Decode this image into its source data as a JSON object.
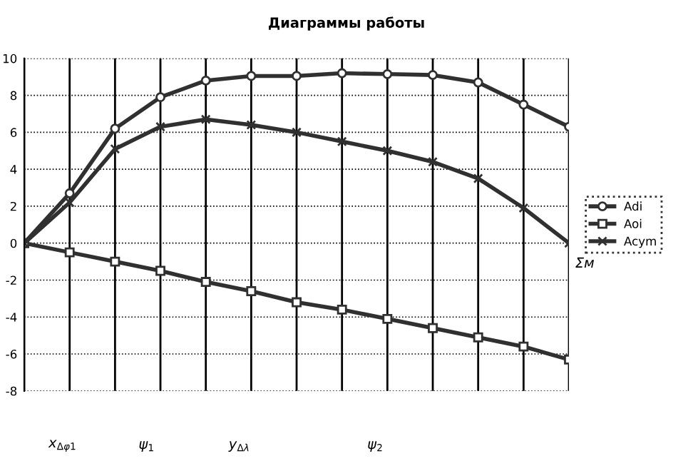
{
  "chart_data": {
    "type": "line",
    "title": "Диаграммы работы",
    "categories": [
      null,
      null,
      null,
      null,
      null,
      null,
      null,
      null,
      null,
      null,
      null,
      null,
      null
    ],
    "series": [
      {
        "name": "Adi",
        "color": "#303030",
        "marker": "circle",
        "values": [
          0,
          2.7,
          6.2,
          7.9,
          8.8,
          9.05,
          9.05,
          9.2,
          9.15,
          9.1,
          8.7,
          7.5,
          6.3
        ]
      },
      {
        "name": "Aoi",
        "color": "#303030",
        "marker": "square",
        "values": [
          0,
          -0.5,
          -1.0,
          -1.5,
          -2.1,
          -2.6,
          -3.2,
          -3.6,
          -4.1,
          -4.6,
          -5.1,
          -5.6,
          -6.3
        ]
      },
      {
        "name": "Acym",
        "color": "#303030",
        "marker": "cross",
        "values": [
          0,
          2.2,
          5.1,
          6.3,
          6.7,
          6.4,
          6.0,
          5.5,
          5.0,
          4.4,
          3.5,
          1.9,
          0
        ]
      }
    ],
    "ylim": [
      -8,
      10
    ],
    "yticks": [
      -8,
      -6,
      -4,
      -2,
      0,
      2,
      4,
      6,
      8,
      10
    ],
    "grid": true,
    "legend": "right",
    "tick_labels": "y",
    "annotations": [
      "x$_{Δφ1}$",
      "ψ$_{1}$",
      "y$_{Δλ}$",
      "ψ$_{2}$",
      "Σм"
    ]
  }
}
